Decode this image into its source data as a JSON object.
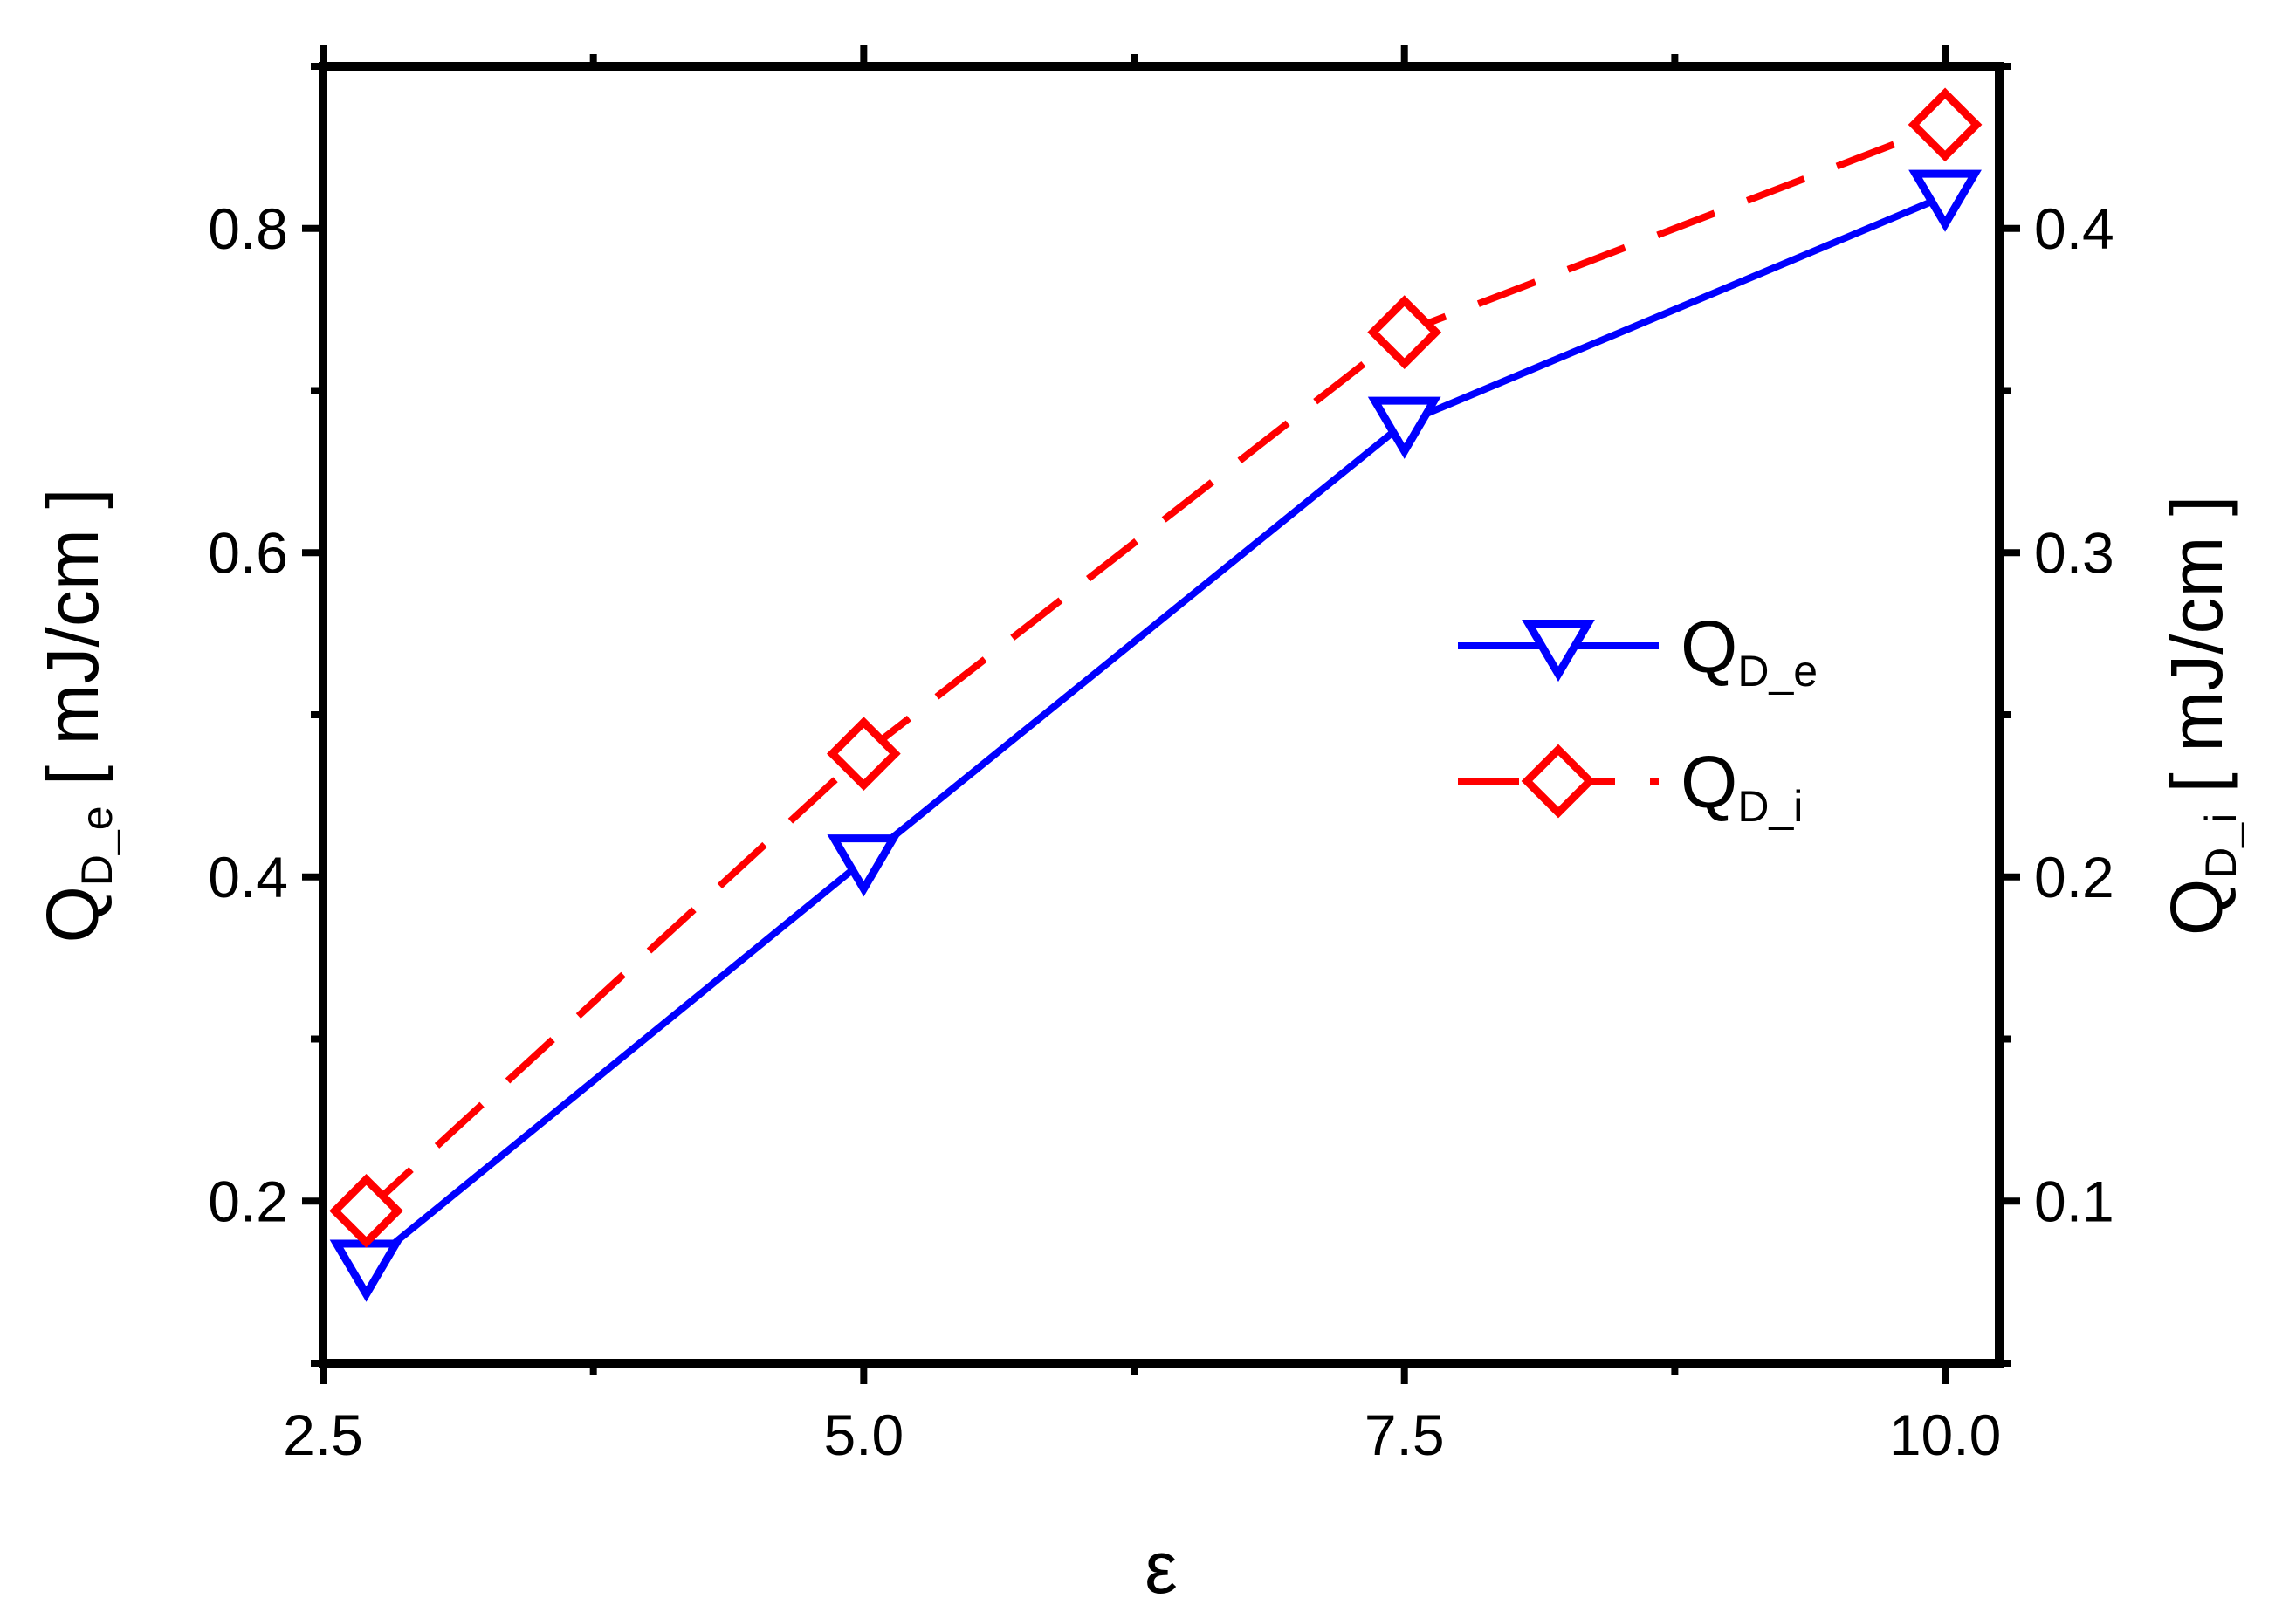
{
  "chart_data": {
    "type": "line",
    "xlabel": "ε",
    "ylabel_left": {
      "main": "Q",
      "sub": "D_e",
      "rest": " [ mJ/cm ]"
    },
    "ylabel_right": {
      "main": "Q",
      "sub": "D_i",
      "rest": " [ mJ/cm ]"
    },
    "xlim": [
      2.5,
      10.25
    ],
    "ylim_left": [
      0.1,
      0.9
    ],
    "ylim_right": [
      0.05,
      0.45
    ],
    "x_ticks": [
      "2.5",
      "5.0",
      "7.5",
      "10.0"
    ],
    "x_tick_values": [
      2.5,
      5.0,
      7.5,
      10.0
    ],
    "y_left_ticks": [
      "0.2",
      "0.4",
      "0.6",
      "0.8"
    ],
    "y_left_tick_values": [
      0.2,
      0.4,
      0.6,
      0.8
    ],
    "y_right_ticks": [
      "0.1",
      "0.2",
      "0.3",
      "0.4"
    ],
    "y_right_tick_values": [
      0.1,
      0.2,
      0.3,
      0.4
    ],
    "grid": false,
    "legend_position": "center-right",
    "series": [
      {
        "name": "Q_D_e",
        "label_main": "Q",
        "label_sub": "D_e",
        "axis": "left",
        "color": "#0000ff",
        "line_style": "solid",
        "marker": "triangle-down",
        "x": [
          2.7,
          5.0,
          7.5,
          10.0
        ],
        "y": [
          0.16,
          0.41,
          0.68,
          0.82
        ]
      },
      {
        "name": "Q_D_i",
        "label_main": "Q",
        "label_sub": "D_i",
        "axis": "right",
        "color": "#ff0000",
        "line_style": "dashed",
        "marker": "diamond",
        "x": [
          2.7,
          5.0,
          7.5,
          10.0
        ],
        "y": [
          0.097,
          0.238,
          0.368,
          0.432
        ]
      }
    ]
  }
}
